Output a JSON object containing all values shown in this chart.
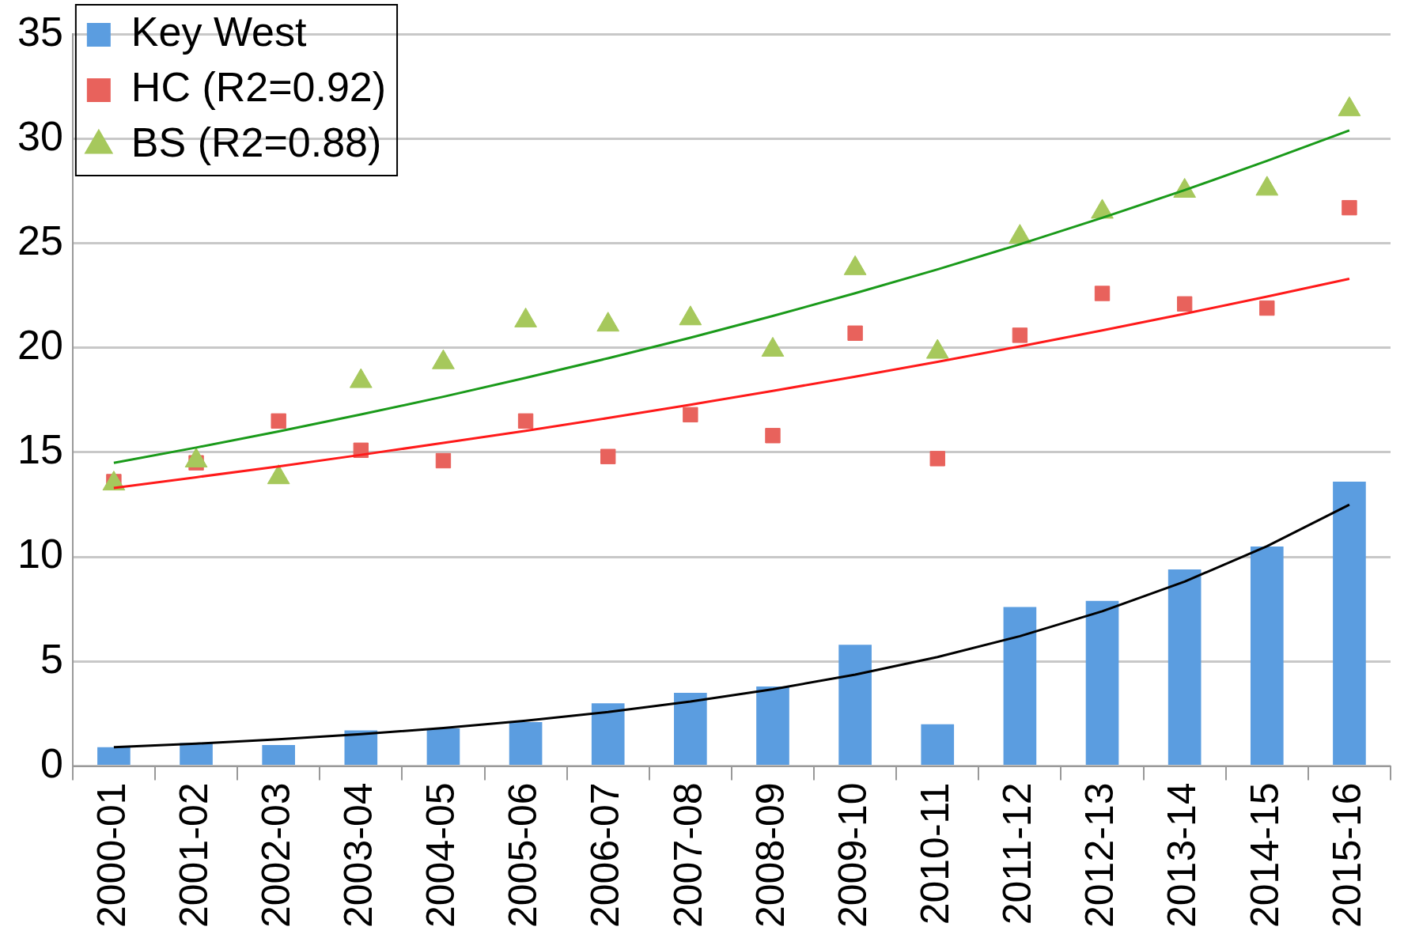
{
  "chart_data": {
    "type": "bar",
    "categories": [
      "2000-01",
      "2001-02",
      "2002-03",
      "2003-04",
      "2004-05",
      "2005-06",
      "2006-07",
      "2007-08",
      "2008-09",
      "2009-10",
      "2010-11",
      "2011-12",
      "2012-13",
      "2013-14",
      "2014-15",
      "2015-16"
    ],
    "series": [
      {
        "name": "Key West",
        "color": "#5b9de0",
        "values": [
          0.9,
          1.1,
          1.0,
          1.7,
          1.8,
          2.1,
          3.0,
          3.5,
          3.8,
          5.8,
          2.0,
          7.6,
          7.9,
          9.4,
          10.5,
          13.6
        ]
      },
      {
        "name": "HC (R2=0.92)",
        "type": "scatter",
        "marker": "square",
        "color": "#e8625c",
        "values": [
          13.6,
          14.5,
          16.5,
          15.1,
          14.6,
          16.5,
          14.8,
          16.8,
          15.8,
          20.7,
          14.7,
          20.6,
          22.6,
          22.1,
          21.9,
          26.7
        ]
      },
      {
        "name": "BS (R2=0.88)",
        "type": "scatter",
        "marker": "triangle",
        "color": "#a6c85c",
        "values": [
          13.5,
          14.6,
          13.8,
          18.4,
          19.3,
          21.3,
          21.1,
          21.4,
          19.9,
          23.8,
          19.8,
          25.3,
          26.5,
          27.5,
          27.6,
          31.4
        ]
      },
      {
        "type": "line",
        "marker": "none",
        "color": "#000000",
        "values": [
          0.9,
          1.07,
          1.28,
          1.52,
          1.82,
          2.17,
          2.58,
          3.08,
          3.67,
          4.37,
          5.21,
          6.21,
          7.4,
          8.82,
          10.51,
          12.5
        ]
      },
      {
        "type": "line",
        "marker": "none",
        "color": "#ff1a1a",
        "values": [
          13.3,
          13.81,
          14.33,
          14.88,
          15.45,
          16.03,
          16.64,
          17.28,
          17.94,
          18.62,
          19.33,
          20.07,
          20.83,
          21.63,
          22.45,
          23.3
        ]
      },
      {
        "type": "line",
        "marker": "none",
        "color": "#1a9a1a",
        "values": [
          14.5,
          15.23,
          16.0,
          16.81,
          17.66,
          18.56,
          19.5,
          20.48,
          21.52,
          22.61,
          23.75,
          24.95,
          26.22,
          27.54,
          28.94,
          30.4
        ]
      }
    ],
    "ylim": [
      0,
      35
    ],
    "yticks": [
      0,
      5,
      10,
      15,
      20,
      25,
      30,
      35
    ],
    "grid": "y",
    "legend": "top left"
  }
}
